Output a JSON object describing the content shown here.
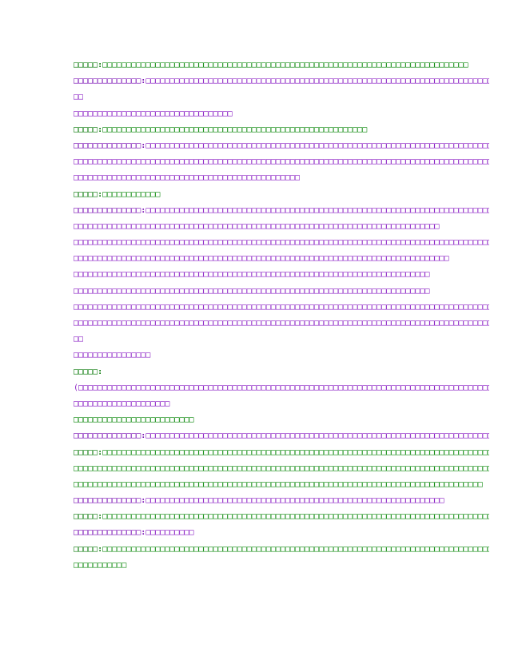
{
  "lines": [
    {
      "color": "green",
      "speaker": "□□□□□:",
      "text": "□□□□□□□□□□□□□□□□□□□□□□□□□□□□□□□□□□□□□□□□□□□□□□□□□□□□□□□□□□□□□□□□□□□□□□□□□□□□"
    },
    {
      "color": "purple",
      "speaker": "□□□□□□□□□□□□□□:",
      "text": "□□□□□□□□□□□□□□□□□□□□□□□□□□□□□□□□□□□□□□□□□□□□□□□□□□□□□□□□□□□□□□□□□□□□□□□□□□□□□□□□□□□□□□□□□□□□□□"
    },
    {
      "color": "purple",
      "speaker": "",
      "text": "□□"
    },
    {
      "color": "purple",
      "speaker": "",
      "text": "□□□□□□□□□□□□□□□□□□□□□□□□□□□□□□□□□"
    },
    {
      "color": "green",
      "speaker": "□□□□□:",
      "text": "□□□□□□□□□□□□□□□□□□□□□□□□□□□□□□□□□□□□□□□□□□□□□□□□□□□□□□□"
    },
    {
      "color": "purple",
      "speaker": "□□□□□□□□□□□□□□:",
      "text": "□□□□□□□□□□□□□□□□□□□□□□□□□□□□□□□□□□□□□□□□□□□□□□□□□□□□□□□□□□□□□□□□□□□□□□□□□□□□□□□□□□□□□□"
    },
    {
      "color": "purple",
      "speaker": "",
      "text": "□□□□□□□□□□□□□□□□□□□□□□□□□□□□□□□□□□□□□□□□□□□□□□□□□□□□□□□□□□□□□□□□□□□□□□□□□□□□□□□□□□□□□□□□□□□"
    },
    {
      "color": "purple",
      "speaker": "",
      "text": "□□□□□□□□□□□□□□□□□□□□□□□□□□□□□□□□□□□□□□□□□□□□□□□"
    },
    {
      "color": "green",
      "speaker": "□□□□□:",
      "text": "□□□□□□□□□□□□"
    },
    {
      "color": "purple",
      "speaker": "□□□□□□□□□□□□□□:",
      "text": "□□□□□□□□□□□□□□□□□□□□□□□□□□□□□□□□□□□□□□□□□□□□□□□□□□□□□□□□□□□□□□□□□□□□□□□□"
    },
    {
      "color": "purple",
      "speaker": "",
      "text": "□□□□□□□□□□□□□□□□□□□□□□□□□□□□□□□□□□□□□□□□□□□□□□□□□□□□□□□□□□□□□□□□□□□□□□□□□□□□"
    },
    {
      "color": "purple",
      "speaker": "",
      "text": "□□□□□□□□□□□□□□□□□□□□□□□□□□□□□□□□□□□□□□□□□□□□□□□□□□□□□□□□□□□□□□□□□□□□□□□□□□□□□□□□□□□□□□□□□□□□□□□"
    },
    {
      "color": "purple",
      "speaker": "",
      "text": "□□□□□□□□□□□□□□□□□□□□□□□□□□□□□□□□□□□□□□□□□□□□□□□□□□□□□□□□□□□□□□□□□□□□□□□□□□□□□□"
    },
    {
      "color": "purple",
      "speaker": "",
      "text": "□□□□□□□□□□□□□□□□□□□□□□□□□□□□□□□□□□□□□□□□□□□□□□□□□□□□□□□□□□□□□□□□□□□□□□□□□□"
    },
    {
      "color": "purple",
      "speaker": "",
      "text": "□□□□□□□□□□□□□□□□□□□□□□□□□□□□□□□□□□□□□□□□□□□□□□□□□□□□□□□□□□□□□□□□□□□□□□□□□□"
    },
    {
      "color": "purple",
      "speaker": "",
      "text": "□□□□□□□□□□□□□□□□□□□□□□□□□□□□□□□□□□□□□□□□□□□□□□□□□□□□□□□□□□□□□□□□□□□□□□□□□□□□□□□□□□□□□□□□□□□□□□□□□□□□□□□"
    },
    {
      "color": "purple",
      "speaker": "",
      "text": "□□□□□□□□□□□□□□□□□□□□□□□□□□□□□□□□□□□□□□□□□□□□□□□□□□□□□□□□□□□□□□□□□□□□□□□□□□□□□□□□□□□□□□□□□□□□□□□□□□□□□□□□□□□□□□□□□□□□□□□□"
    },
    {
      "color": "purple",
      "speaker": "",
      "text": "□□"
    },
    {
      "color": "purple",
      "speaker": "",
      "text": "□□□□□□□□□□□□□□□□"
    },
    {
      "color": "green",
      "speaker": "□□□□□:",
      "text": ""
    },
    {
      "color": "purple",
      "speaker": "",
      "text": "(□□□□□□□□□□□□□□□□□□□□□□□□□□□□□□□□□□□□□□□□□□□□□□□□□□□□□□□□□□□□□□□□□□□□□□□□□□□□□□□□□□□□□□□□□□□□□□□□□□□□□□□□□□□□□□□□□□□□□□□□□□□□"
    },
    {
      "color": "purple",
      "speaker": "",
      "text": "□□□□□□□□□□□□□□□□□□□□"
    },
    {
      "color": "green",
      "speaker": "",
      "text": "□□□□□□□□□□□□□□□□□□□□□□□□□"
    },
    {
      "color": "purple",
      "speaker": "□□□□□□□□□□□□□□:",
      "text": "□□□□□□□□□□□□□□□□□□□□□□□□□□□□□□□□□□□□□□□□□□□□□□□□□□□□□□□□□□□□□□□□□□□□□□□□□□□□□□□□□□□□□□□□□□□□□"
    },
    {
      "color": "green",
      "speaker": "□□□□□:",
      "text": "□□□□□□□□□□□□□□□□□□□□□□□□□□□□□□□□□□□□□□□□□□□□□□□□□□□□□□□□□□□□□□□□□□□□□□□□□□□□□□□□□□□□□□□□□□□□□□□□□□□□□□□□□□□□□□□□"
    },
    {
      "color": "green",
      "speaker": "",
      "text": "□□□□□□□□□□□□□□□□□□□□□□□□□□□□□□□□□□□□□□□□□□□□□□□□□□□□□□□□□□□□□□□□□□□□□□□□□□□□□□□□□□□□□□□□□□□□□□□□□□□□□"
    },
    {
      "color": "green",
      "speaker": "",
      "text": "□□□□□□□□□□□□□□□□□□□□□□□□□□□□□□□□□□□□□□□□□□□□□□□□□□□□□□□□□□□□□□□□□□□□□□□□□□□□□□□□□□□□□"
    },
    {
      "color": "purple",
      "speaker": "□□□□□□□□□□□□□□:",
      "text": "□□□□□□□□□□□□□□□□□□□□□□□□□□□□□□□□□□□□□□□□□□□□□□□□□□□□□□□□□□□□□□"
    },
    {
      "color": "green",
      "speaker": "□□□□□:",
      "text": "□□□□□□□□□□□□□□□□□□□□□□□□□□□□□□□□□□□□□□□□□□□□□□□□□□□□□□□□□□□□□□□□□□□□□□□□□□□□□□□□□□□□□□□□"
    },
    {
      "color": "purple",
      "speaker": "□□□□□□□□□□□□□□:",
      "text": "□□□□□□□□□□"
    },
    {
      "color": "green",
      "speaker": "□□□□□:",
      "text": "□□□□□□□□□□□□□□□□□□□□□□□□□□□□□□□□□□□□□□□□□□□□□□□□□□□□□□□□□□□□□□□□□□□□□□□□□□□□□□□□□□□□□□□□□□□"
    },
    {
      "color": "green",
      "speaker": "",
      "text": "□□□□□□□□□□□"
    }
  ]
}
